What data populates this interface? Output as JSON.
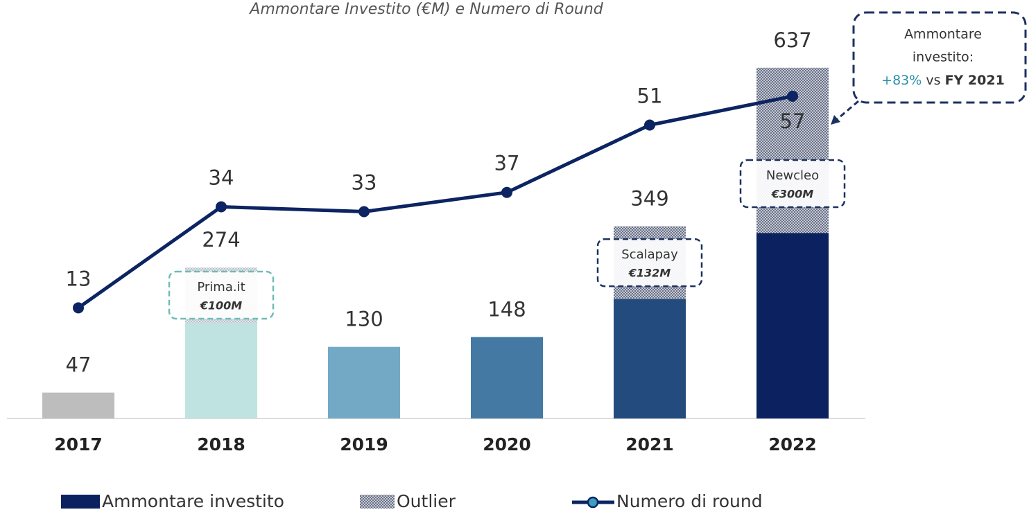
{
  "chart_data": {
    "type": "bar-line",
    "subtitle": "Ammontare Investito (€M) e Numero di Round",
    "categories": [
      "2017",
      "2018",
      "2019",
      "2020",
      "2021",
      "2022"
    ],
    "series": [
      {
        "name": "Ammontare investito",
        "color": "#0c2260",
        "colors": [
          "#bdbdbd",
          "#bfe3e0",
          "#74a9c6",
          "#4479a3",
          "#234b7e",
          "#0c2260"
        ],
        "values": [
          47,
          174,
          130,
          148,
          217,
          337
        ]
      },
      {
        "name": "Outlier",
        "color": "#8c94a8",
        "values": [
          null,
          100,
          null,
          null,
          132,
          300
        ],
        "value_labels": [
          null,
          "€100M",
          null,
          null,
          "€132M",
          "€300M"
        ],
        "outlier_names": [
          null,
          "Prima.it",
          null,
          null,
          "Scalapay",
          "Newcleo"
        ]
      },
      {
        "name": "Numero di round",
        "type": "line",
        "axis": "y2",
        "color": "#0c2461",
        "values": [
          13,
          34,
          33,
          37,
          51,
          57
        ]
      }
    ],
    "totals": [
      47,
      274,
      130,
      148,
      349,
      637
    ],
    "ylim": [
      0,
      760
    ],
    "y2lim": [
      -10,
      77
    ],
    "callout": {
      "lines": [
        "Ammontare",
        "investito:"
      ],
      "change": "+83%",
      "vs": "vs",
      "reference": "FY 2021"
    }
  }
}
